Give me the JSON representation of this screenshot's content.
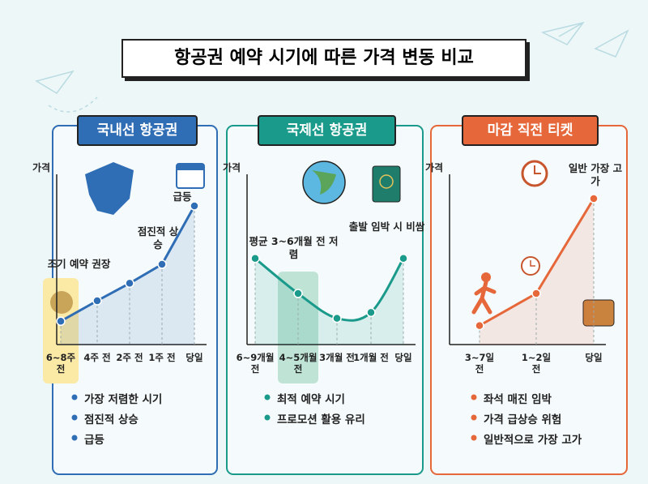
{
  "title": "항공권 예약 시기에 따른 가격 변동 비교",
  "chart_data": [
    {
      "type": "line",
      "title": "국내선 항공권",
      "y_label": "가격",
      "color": "#2f6db5",
      "categories": [
        "6~8주 전",
        "4주 전",
        "2주 전",
        "1주 전",
        "당일"
      ],
      "values": [
        16,
        30,
        42,
        55,
        95
      ],
      "ylim": [
        0,
        100
      ],
      "annotations": [
        "조기 예약 권장",
        "점진적 상승",
        "급등"
      ],
      "notes": [
        "가장 저렴한 시기",
        "점진적 상승",
        "급등"
      ]
    },
    {
      "type": "line",
      "title": "국제선 항공권",
      "y_label": "가격",
      "color": "#1a9a8a",
      "categories": [
        "6~9개월 전",
        "4~5개월 전",
        "3개월 전",
        "1개월 전",
        "당일"
      ],
      "values": [
        59,
        35,
        18,
        22,
        59
      ],
      "ylim": [
        0,
        100
      ],
      "annotations": [
        "평균 3~6개월 전 저렴",
        "출발 임박 시 비쌈"
      ],
      "notes": [
        "최적 예약 시기",
        "프로모션 활용 유리"
      ]
    },
    {
      "type": "line",
      "title": "마감 직전 티켓",
      "y_label": "가격",
      "color": "#e5673a",
      "categories": [
        "3~7일 전",
        "1~2일 전",
        "당일"
      ],
      "values": [
        13,
        35,
        100
      ],
      "ylim": [
        0,
        100
      ],
      "annotations": [
        "일반 가장 고가"
      ],
      "notes": [
        "좌석 매진 임박",
        "가격 급상승 위험",
        "일반적으로 가장 고가"
      ]
    }
  ]
}
